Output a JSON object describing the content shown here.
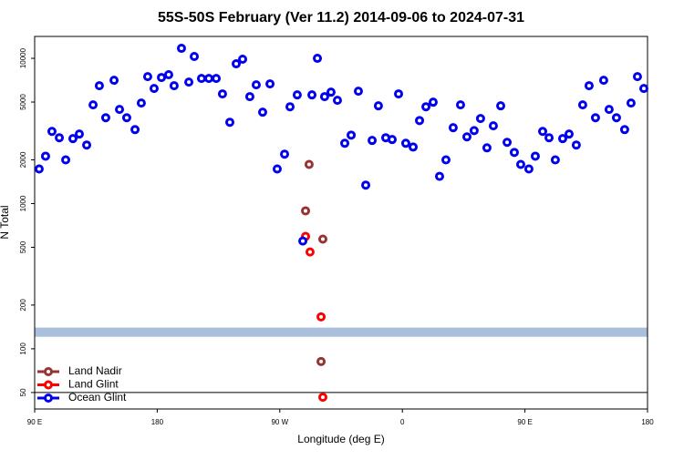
{
  "chart_data": {
    "type": "scatter",
    "title": "55S-50S February (Ver 11.2)   2014-09-06 to 2024-07-31",
    "xlabel": "Longitude (deg E)",
    "ylabel": "N Total",
    "xlim": [
      90,
      540
    ],
    "xticks": [
      {
        "value": 90,
        "label": "90 E"
      },
      180,
      {
        "value": 270,
        "label": "90 W"
      },
      {
        "value": 360,
        "label": "0"
      },
      {
        "value": 450,
        "label": "90 E"
      },
      {
        "value": 540,
        "label": "180"
      }
    ],
    "ylim": [
      38.5,
      14150
    ],
    "ylog": true,
    "yticks": [
      50,
      100,
      200,
      500,
      1000,
      2000,
      5000,
      10000
    ],
    "reference_line": 50,
    "shaded_band": [
      121,
      140
    ],
    "band_color": "#a9bfdc",
    "legend": "lower left",
    "series": [
      {
        "name": "Land Nadir",
        "color": "#993333",
        "x": [
          291.5,
          288.9,
          301.6,
          300.3
        ],
        "values": [
          1860,
          891,
          569,
          81.7
        ]
      },
      {
        "name": "Land Glint",
        "color": "#ff0000",
        "x": [
          288.9,
          292.2,
          300.3,
          301.6
        ],
        "values": [
          594,
          464,
          166,
          46.4
        ]
      },
      {
        "name": "Ocean Glint",
        "color": "#0000ee",
        "x": [
          93.3,
          98,
          102.7,
          108.1,
          112.8,
          118.1,
          122.8,
          128.2,
          132.9,
          137.5,
          142.2,
          148.3,
          152.3,
          157.6,
          163.7,
          168.3,
          173,
          177.7,
          183.1,
          188.4,
          192.4,
          197.8,
          203.2,
          207.2,
          212.5,
          217.9,
          223.3,
          227.9,
          233.3,
          238,
          242.7,
          248,
          252.7,
          257.4,
          262.8,
          268.1,
          273.5,
          277.5,
          282.8,
          286.9,
          293.6,
          297.6,
          302.9,
          307.6,
          312.3,
          317.7,
          322.4,
          327.7,
          333.1,
          337.8,
          342.4,
          347.8,
          352.5,
          357.2,
          362.5,
          367.9,
          372.6,
          377.3,
          382.6,
          387.3,
          392,
          397.3,
          402.7,
          407.4,
          412.7,
          417.4,
          422.1,
          426.8,
          432.2,
          436.9,
          442.2,
          446.9,
          452.9,
          457.6,
          463,
          467.7,
          472.3,
          477.7,
          482.4,
          487.7,
          492.4,
          497.1,
          501.8,
          507.8,
          511.8,
          517.2,
          523.2,
          527.9,
          532.6,
          537.3
        ],
        "values": [
          1730,
          2120,
          3140,
          2840,
          2000,
          2800,
          3010,
          2530,
          4780,
          6480,
          3900,
          7060,
          4450,
          3900,
          3230,
          4920,
          7480,
          6200,
          7380,
          7710,
          6480,
          11720,
          6860,
          10300,
          7270,
          7270,
          7270,
          5690,
          3630,
          9170,
          9860,
          5450,
          6570,
          4260,
          6670,
          1730,
          2190,
          4640,
          5600,
          552,
          5600,
          10000,
          5450,
          5850,
          5140,
          2600,
          2960,
          5940,
          1340,
          2720,
          4710,
          2840,
          2760,
          5690,
          2600,
          2450,
          3730,
          4640,
          4990,
          1540,
          2000,
          3330,
          4780,
          2880,
          3180,
          3850,
          2420,
          3430,
          4710,
          2640,
          2250,
          1860,
          1730,
          2120,
          3140,
          2840,
          2000,
          2800,
          3010,
          2530,
          4780,
          6480,
          3900,
          7060,
          4450,
          3900,
          3230,
          4920,
          7480,
          6200
        ]
      }
    ]
  }
}
